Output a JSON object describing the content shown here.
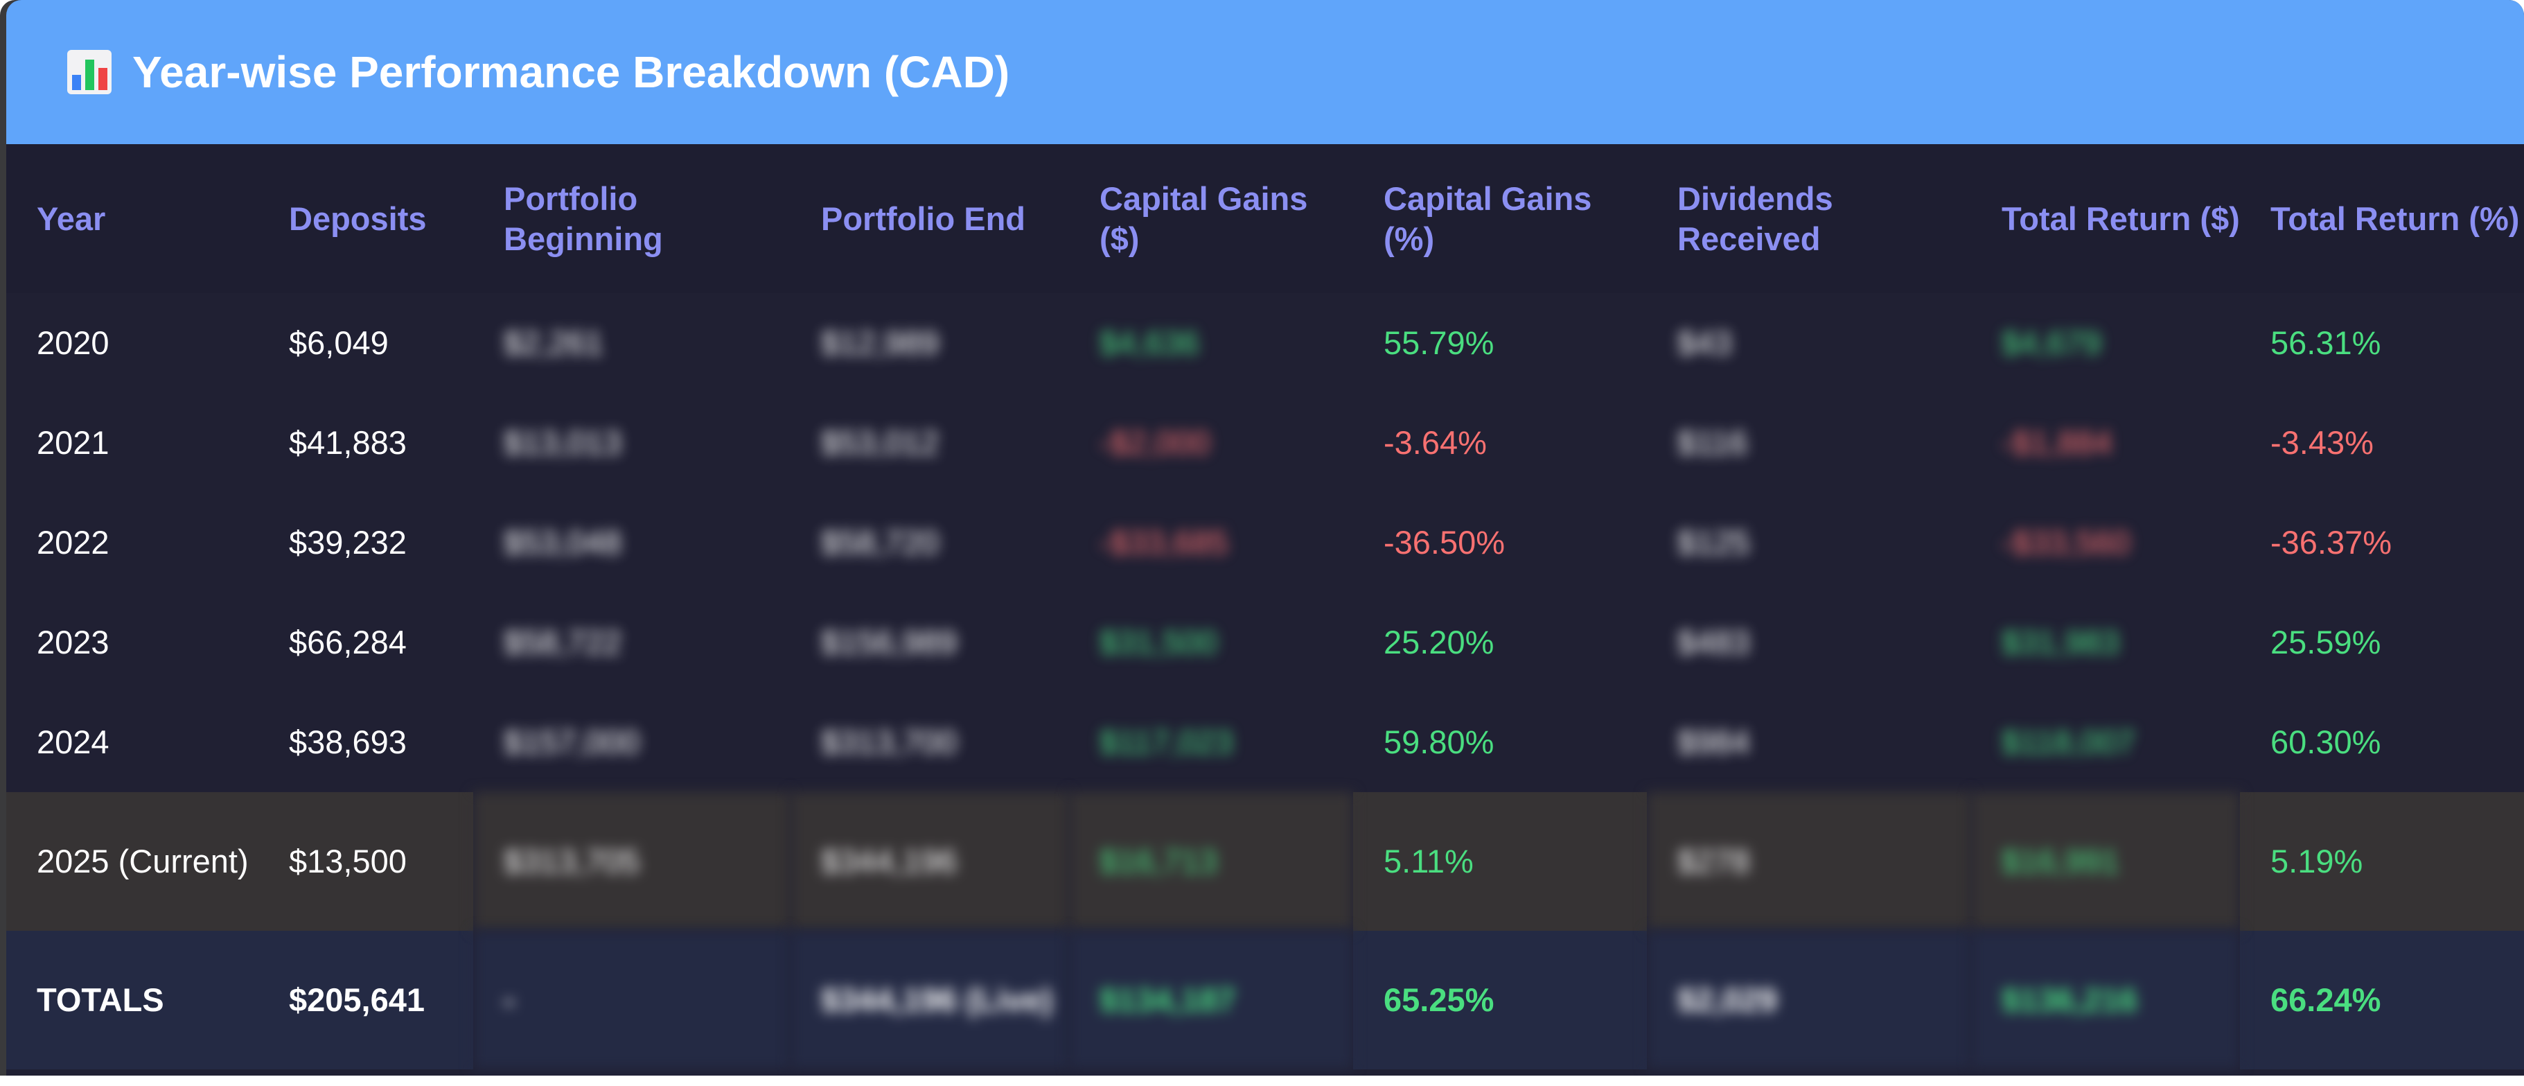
{
  "header": {
    "icon": "bar-chart-icon",
    "title": "Year-wise Performance Breakdown (CAD)"
  },
  "table": {
    "columns": [
      "Year",
      "Deposits",
      "Portfolio Beginning",
      "Portfolio End",
      "Capital Gains ($)",
      "Capital Gains (%)",
      "Dividends Received",
      "Total Return ($)",
      "Total Return (%)"
    ],
    "rows": [
      {
        "year": "2020",
        "deposits": "$6,049",
        "begin": "$2,261",
        "end": "$12,989",
        "cg_usd": "$4,636",
        "cg_pct": "55.79%",
        "div": "$43",
        "tr_usd": "$4,679",
        "tr_pct": "56.31%",
        "sign": "pos"
      },
      {
        "year": "2021",
        "deposits": "$41,883",
        "begin": "$13,013",
        "end": "$53,012",
        "cg_usd": "-$2,000",
        "cg_pct": "-3.64%",
        "div": "$116",
        "tr_usd": "-$1,884",
        "tr_pct": "-3.43%",
        "sign": "neg"
      },
      {
        "year": "2022",
        "deposits": "$39,232",
        "begin": "$53,048",
        "end": "$58,720",
        "cg_usd": "-$33,685",
        "cg_pct": "-36.50%",
        "div": "$125",
        "tr_usd": "-$33,560",
        "tr_pct": "-36.37%",
        "sign": "neg"
      },
      {
        "year": "2023",
        "deposits": "$66,284",
        "begin": "$58,722",
        "end": "$156,989",
        "cg_usd": "$31,500",
        "cg_pct": "25.20%",
        "div": "$483",
        "tr_usd": "$31,983",
        "tr_pct": "25.59%",
        "sign": "pos"
      },
      {
        "year": "2024",
        "deposits": "$38,693",
        "begin": "$157,000",
        "end": "$313,700",
        "cg_usd": "$117,023",
        "cg_pct": "59.80%",
        "div": "$984",
        "tr_usd": "$118,007",
        "tr_pct": "60.30%",
        "sign": "pos"
      }
    ],
    "current": {
      "year": "2025 (Current)",
      "deposits": "$13,500",
      "begin": "$313,705",
      "end": "$344,196",
      "cg_usd": "$16,713",
      "cg_pct": "5.11%",
      "div": "$278",
      "tr_usd": "$16,991",
      "tr_pct": "5.19%"
    },
    "totals": {
      "label": "TOTALS",
      "deposits": "$205,641",
      "begin": "-",
      "end": "$344,196 (Live)",
      "cg_usd": "$134,187",
      "cg_pct": "65.25%",
      "div": "$2,029",
      "tr_usd": "$136,216",
      "tr_pct": "66.24%"
    }
  },
  "colors": {
    "header_bg": "#60a5fa",
    "panel_bg": "#202033",
    "header_text": "#8b8ff2",
    "positive": "#4ade80",
    "negative": "#f87171",
    "current_row_bg": "#363334",
    "totals_row_bg": "#242a44"
  }
}
